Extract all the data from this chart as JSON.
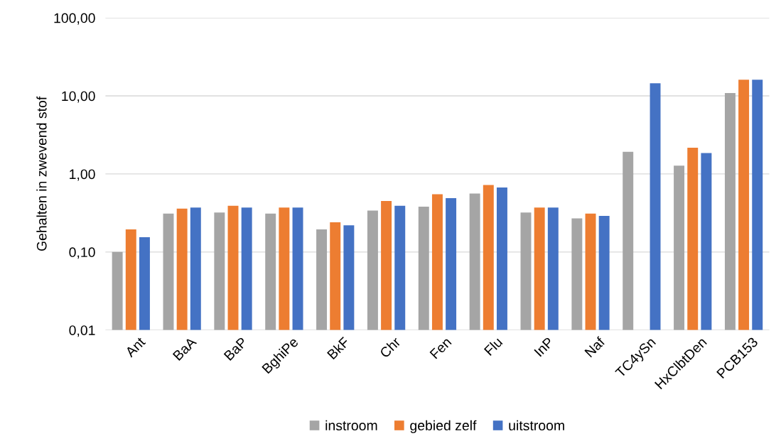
{
  "chart_data": {
    "type": "bar",
    "ylabel": "Gehalten in zwevend stof",
    "categories": [
      "Ant",
      "BaA",
      "BaP",
      "BghiPe",
      "BkF",
      "Chr",
      "Fen",
      "Flu",
      "InP",
      "Naf",
      "TC4ySn",
      "HxClbtDen",
      "PCB153"
    ],
    "series": [
      {
        "name": "instroom",
        "color": "#a5a5a5",
        "values": [
          0.1,
          0.31,
          0.32,
          0.31,
          0.195,
          0.34,
          0.38,
          0.56,
          0.32,
          0.27,
          1.92,
          1.28,
          10.9
        ]
      },
      {
        "name": "gebied zelf",
        "color": "#ed7d31",
        "values": [
          0.195,
          0.36,
          0.39,
          0.37,
          0.24,
          0.45,
          0.55,
          0.72,
          0.37,
          0.31,
          null,
          2.17,
          16.1
        ]
      },
      {
        "name": "uitstroom",
        "color": "#4472c4",
        "values": [
          0.155,
          0.37,
          0.37,
          0.37,
          0.22,
          0.39,
          0.49,
          0.67,
          0.37,
          0.29,
          14.5,
          1.85,
          16.1
        ]
      }
    ],
    "log": true,
    "ylim": [
      0.01,
      100
    ],
    "yticks": [
      {
        "value": 0.01,
        "label": "0,01"
      },
      {
        "value": 0.1,
        "label": "0,10"
      },
      {
        "value": 1,
        "label": "1,00"
      },
      {
        "value": 10,
        "label": "10,00"
      },
      {
        "value": 100,
        "label": "100,00"
      }
    ],
    "grid": "y",
    "legend": "bottom"
  }
}
